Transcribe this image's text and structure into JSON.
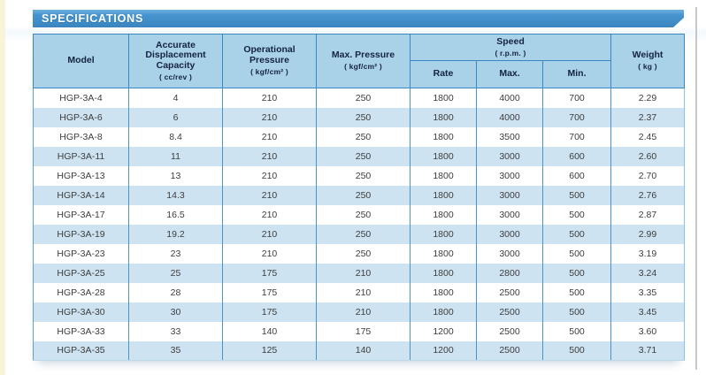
{
  "page": {
    "title": "SPECIFICATIONS"
  },
  "colors": {
    "banner_blue": "#3a85c1",
    "header_fill": "#a9d2e9",
    "row_stripe": "#cde3f1",
    "grid_border": "#4a94ca",
    "header_text": "#14233e",
    "left_strip_cream": "#f8f4da"
  },
  "table": {
    "column_keys": [
      "model",
      "capacity",
      "op_pressure",
      "max_pressure",
      "speed_rate",
      "speed_max",
      "speed_min",
      "weight"
    ],
    "columns": {
      "model": {
        "label": "Model"
      },
      "capacity": {
        "label": "Accurate Displacement Capacity",
        "unit": "( cc/rev )"
      },
      "op_pressure": {
        "label": "Operational Pressure",
        "unit": "( kgf/cm² )"
      },
      "max_pressure": {
        "label": "Max. Pressure",
        "unit": "( kgf/cm² )"
      },
      "speed": {
        "label": "Speed",
        "unit": "( r.p.m. )",
        "sub": [
          "Rate",
          "Max.",
          "Min."
        ]
      },
      "weight": {
        "label": "Weight",
        "unit": "( kg )"
      }
    },
    "rows": [
      [
        "HGP-3A-4",
        "4",
        "210",
        "250",
        "1800",
        "4000",
        "700",
        "2.29"
      ],
      [
        "HGP-3A-6",
        "6",
        "210",
        "250",
        "1800",
        "4000",
        "700",
        "2.37"
      ],
      [
        "HGP-3A-8",
        "8.4",
        "210",
        "250",
        "1800",
        "3500",
        "700",
        "2.45"
      ],
      [
        "HGP-3A-11",
        "11",
        "210",
        "250",
        "1800",
        "3000",
        "600",
        "2.60"
      ],
      [
        "HGP-3A-13",
        "13",
        "210",
        "250",
        "1800",
        "3000",
        "600",
        "2.70"
      ],
      [
        "HGP-3A-14",
        "14.3",
        "210",
        "250",
        "1800",
        "3000",
        "500",
        "2.76"
      ],
      [
        "HGP-3A-17",
        "16.5",
        "210",
        "250",
        "1800",
        "3000",
        "500",
        "2.87"
      ],
      [
        "HGP-3A-19",
        "19.2",
        "210",
        "250",
        "1800",
        "3000",
        "500",
        "2.99"
      ],
      [
        "HGP-3A-23",
        "23",
        "210",
        "250",
        "1800",
        "3000",
        "500",
        "3.19"
      ],
      [
        "HGP-3A-25",
        "25",
        "175",
        "210",
        "1800",
        "2800",
        "500",
        "3.24"
      ],
      [
        "HGP-3A-28",
        "28",
        "175",
        "210",
        "1800",
        "2500",
        "500",
        "3.35"
      ],
      [
        "HGP-3A-30",
        "30",
        "175",
        "210",
        "1800",
        "2500",
        "500",
        "3.45"
      ],
      [
        "HGP-3A-33",
        "33",
        "140",
        "175",
        "1200",
        "2500",
        "500",
        "3.60"
      ],
      [
        "HGP-3A-35",
        "35",
        "125",
        "140",
        "1200",
        "2500",
        "500",
        "3.71"
      ]
    ]
  }
}
